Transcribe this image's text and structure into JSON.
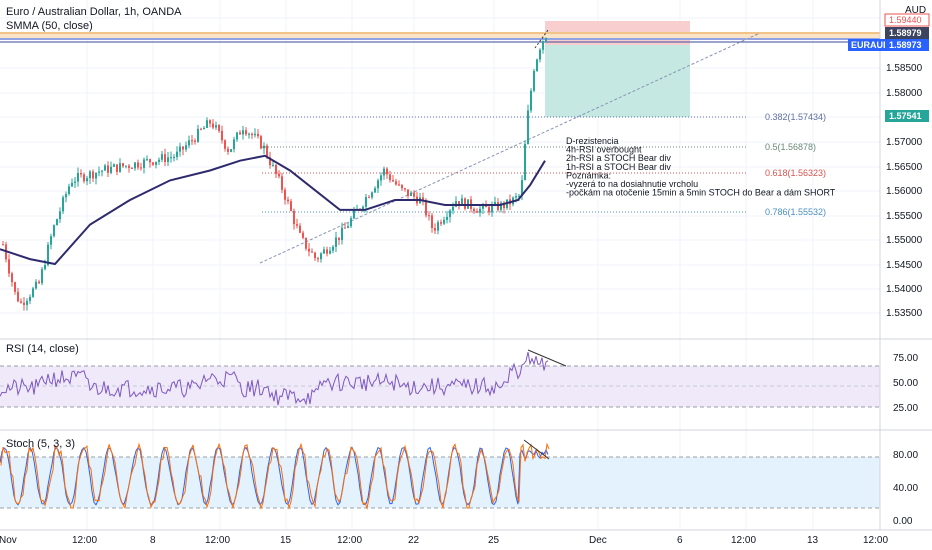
{
  "header": {
    "title": "Euro / Australian Dollar, 1h, OANDA",
    "indicator": "SMMA (50, close)",
    "currency": "AUD"
  },
  "price_axis": {
    "ticks": [
      "1.59500",
      "1.58500",
      "1.58000",
      "1.57500",
      "1.57000",
      "1.56500",
      "1.56000",
      "1.55500",
      "1.55000",
      "1.54500",
      "1.54000",
      "1.53500"
    ],
    "tags": {
      "top": "1.59440",
      "second": "1.58979",
      "symbol": "EURAUD",
      "last": "1.58973",
      "stop_target": "1.57541"
    }
  },
  "fib_levels": [
    {
      "label": "0.382(1.57434)",
      "color": "#5f6fa3"
    },
    {
      "label": "0.5(1.56878)",
      "color": "#6a8a7a"
    },
    {
      "label": "0.618(1.56323)",
      "color": "#d9534f"
    },
    {
      "label": "0.786(1.55532)",
      "color": "#4a90c2"
    }
  ],
  "note": [
    "D-rezistencia",
    "4h-RSI overbought",
    "2h-RSI a STOCH Bear div",
    "1h-RSI a STOCH Bear div",
    "Poznámka:",
    "-vyzerá to na dosiahnutie vrcholu",
    "-počkám na otočenie 15min a 5min STOCH do Bear a dám SHORT"
  ],
  "rsi": {
    "title": "RSI (14, close)",
    "ticks": [
      "75.00",
      "50.00",
      "25.00"
    ]
  },
  "stoch": {
    "title": "Stoch (5, 3, 3)",
    "ticks": [
      "80.00",
      "40.00",
      "0.00"
    ]
  },
  "time_axis": [
    "Nov",
    "12:00",
    "8",
    "12:00",
    "15",
    "12:00",
    "22",
    "12:00",
    "25",
    "Dec",
    "6",
    "12:00",
    "13",
    "12:00"
  ],
  "colors": {
    "up_candle": "#26a69a",
    "down_candle": "#ef5350",
    "smma": "#2e2a6e",
    "rsi_line": "#7e57c2",
    "stoch_k": "#2962ff",
    "stoch_d": "#ff6d00",
    "tag_blue": "#2962ff",
    "tag_green": "#26a69a"
  },
  "chart_data": [
    {
      "type": "candlestick",
      "title": "Euro / Australian Dollar, 1h, OANDA",
      "series": [
        {
          "name": "SMMA (50, close)"
        }
      ],
      "y_range": [
        1.532,
        1.598
      ],
      "key_points": [
        {
          "x": "Nov",
          "close": 1.549
        },
        {
          "x": "Nov 2",
          "close": 1.537
        },
        {
          "x": "Nov 7",
          "close": 1.566
        },
        {
          "x": "Nov 11",
          "close": 1.573
        },
        {
          "x": "Nov 15",
          "close": 1.56
        },
        {
          "x": "Nov 17",
          "close": 1.546
        },
        {
          "x": "Nov 19",
          "close": 1.564
        },
        {
          "x": "Nov 22",
          "close": 1.556
        },
        {
          "x": "Nov 25",
          "close": 1.557
        },
        {
          "x": "Nov 26",
          "close": 1.5897
        }
      ]
    },
    {
      "type": "line",
      "title": "RSI (14, close)",
      "y_range": [
        0,
        100
      ],
      "bands": [
        30,
        70
      ]
    },
    {
      "type": "line",
      "title": "Stoch (5, 3, 3)",
      "y_range": [
        0,
        100
      ],
      "bands": [
        20,
        80
      ]
    }
  ]
}
